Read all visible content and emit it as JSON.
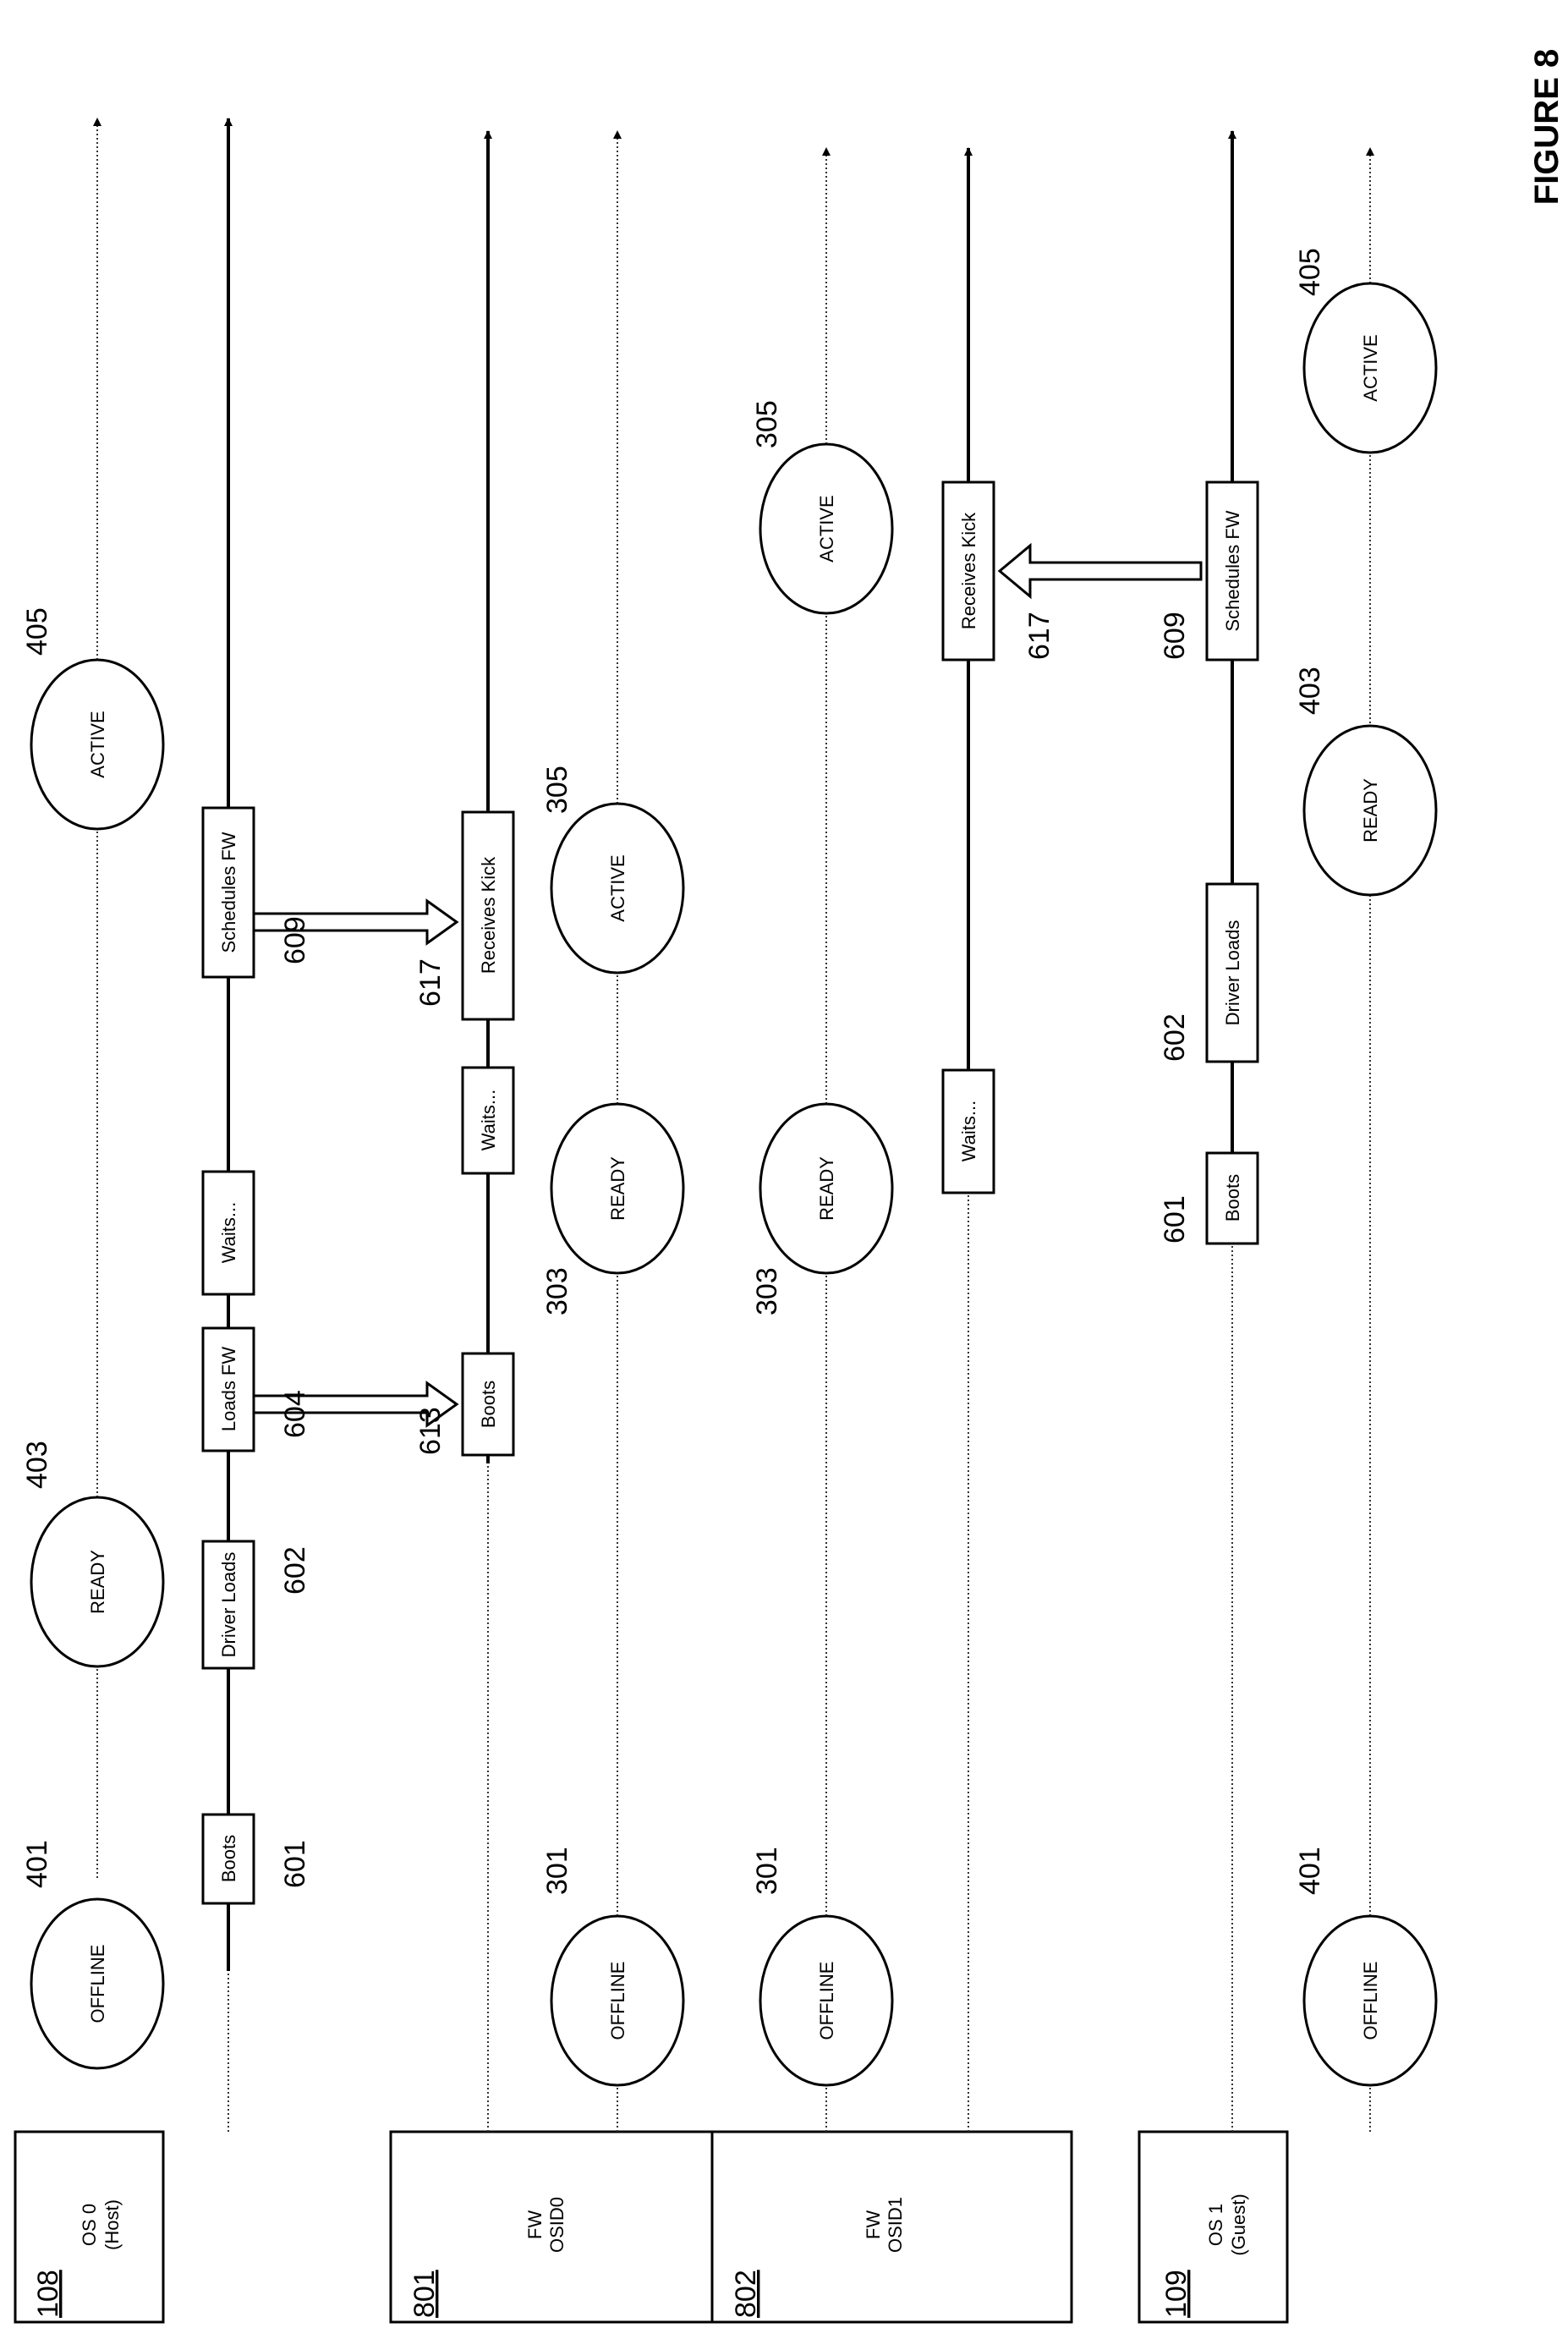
{
  "figure_title": "FIGURE 8",
  "lanes": [
    {
      "id": "108",
      "name_line1": "OS 0",
      "name_line2": "(Host)"
    },
    {
      "id": "801",
      "name_line1": "FW",
      "name_line2": "OSID0"
    },
    {
      "id": "802",
      "name_line1": "FW",
      "name_line2": "OSID1"
    },
    {
      "id": "109",
      "name_line1": "OS 1",
      "name_line2": "(Guest)"
    }
  ],
  "states": {
    "offline": "OFFLINE",
    "ready": "READY",
    "active": "ACTIVE"
  },
  "actions": {
    "boots": "Boots",
    "driver_loads": "Driver Loads",
    "loads_fw": "Loads FW",
    "waits": "Waits...",
    "schedules_fw": "Schedules FW",
    "receives_kick": "Receives Kick"
  },
  "refs": {
    "r401": "401",
    "r403": "403",
    "r405": "405",
    "r301": "301",
    "r303": "303",
    "r305": "305",
    "r601": "601",
    "r602": "602",
    "r604": "604",
    "r609": "609",
    "r613": "613",
    "r617": "617"
  }
}
